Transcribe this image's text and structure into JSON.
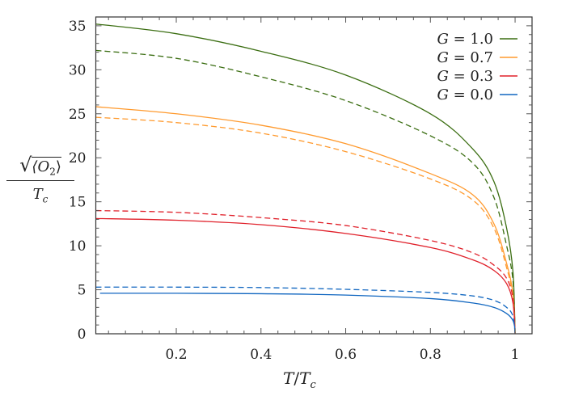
{
  "chart_data": {
    "type": "line",
    "title": "",
    "xlabel": {
      "T": "T",
      "slash": "/",
      "Tc": "T",
      "sub": "c"
    },
    "ylabel": {
      "sqrt": "√",
      "numerator": "⟨O",
      "numsub": "2",
      "close": "⟩",
      "denominator": "T",
      "densub": "c"
    },
    "xlim": [
      0.01,
      1.04
    ],
    "ylim": [
      0,
      36
    ],
    "xticks": [
      0.2,
      0.4,
      0.6,
      0.8,
      1
    ],
    "xtick_labels": [
      "0.2",
      "0.4",
      "0.6",
      "0.8",
      "1"
    ],
    "yticks": [
      0,
      5,
      10,
      15,
      20,
      25,
      30,
      35
    ],
    "ytick_labels": [
      "0",
      "5",
      "10",
      "15",
      "20",
      "25",
      "30",
      "35"
    ],
    "grid": false,
    "legend_placement": "top-right",
    "legend": [
      {
        "label": "G = 1.0",
        "var": "G",
        "value": "1.0",
        "color": "#3b6e12"
      },
      {
        "label": "G = 0.7",
        "var": "G",
        "value": "0.7",
        "color": "#ff9a2e"
      },
      {
        "label": "G = 0.3",
        "var": "G",
        "value": "0.3",
        "color": "#e0202a"
      },
      {
        "label": "G = 0.0",
        "var": "G",
        "value": "0.0",
        "color": "#1066c0"
      }
    ],
    "series": [
      {
        "group": "G = 1.0",
        "style": "solid",
        "color": "#3b6e12",
        "x": [
          0.01,
          0.2,
          0.4,
          0.6,
          0.8,
          0.9,
          0.95,
          0.98,
          0.995,
          1.0
        ],
        "y": [
          35.2,
          34.1,
          32.1,
          29.4,
          25.0,
          21.0,
          17.3,
          12.0,
          7.0,
          0
        ]
      },
      {
        "group": "G = 1.0",
        "style": "dashed",
        "color": "#3b6e12",
        "x": [
          0.01,
          0.2,
          0.4,
          0.6,
          0.8,
          0.9,
          0.95,
          0.98,
          0.995,
          1.0
        ],
        "y": [
          32.2,
          31.3,
          29.2,
          26.5,
          22.5,
          19.4,
          15.5,
          10.0,
          6.0,
          0
        ]
      },
      {
        "group": "G = 0.7",
        "style": "solid",
        "color": "#ff9a2e",
        "x": [
          0.01,
          0.2,
          0.4,
          0.6,
          0.8,
          0.9,
          0.95,
          0.98,
          0.995,
          1.0
        ],
        "y": [
          25.8,
          25.0,
          23.7,
          21.6,
          18.2,
          15.8,
          12.5,
          8.0,
          4.5,
          0
        ]
      },
      {
        "group": "G = 0.7",
        "style": "dashed",
        "color": "#ff9a2e",
        "x": [
          0.01,
          0.2,
          0.4,
          0.6,
          0.8,
          0.9,
          0.95,
          0.98,
          0.995,
          1.0
        ],
        "y": [
          24.6,
          24.0,
          22.8,
          20.7,
          17.6,
          15.2,
          12.0,
          7.5,
          4.2,
          0
        ]
      },
      {
        "group": "G = 0.3",
        "style": "solid",
        "color": "#e0202a",
        "x": [
          0.01,
          0.2,
          0.4,
          0.6,
          0.8,
          0.9,
          0.95,
          0.98,
          0.995,
          1.0
        ],
        "y": [
          13.1,
          12.9,
          12.4,
          11.4,
          9.8,
          8.4,
          7.2,
          5.7,
          3.5,
          0
        ]
      },
      {
        "group": "G = 0.3",
        "style": "dashed",
        "color": "#e0202a",
        "x": [
          0.01,
          0.2,
          0.4,
          0.6,
          0.8,
          0.9,
          0.95,
          0.98,
          0.995,
          1.0
        ],
        "y": [
          14.0,
          13.8,
          13.2,
          12.3,
          10.6,
          9.2,
          7.8,
          6.3,
          4.0,
          0
        ]
      },
      {
        "group": "G = 0.0",
        "style": "solid",
        "color": "#1066c0",
        "x": [
          0.02,
          0.2,
          0.4,
          0.6,
          0.8,
          0.9,
          0.95,
          0.98,
          0.995,
          1.0
        ],
        "y": [
          4.6,
          4.6,
          4.55,
          4.4,
          4.0,
          3.5,
          3.0,
          2.3,
          1.5,
          0.5
        ]
      },
      {
        "group": "G = 0.0",
        "style": "dashed",
        "color": "#1066c0",
        "x": [
          0.01,
          0.2,
          0.4,
          0.6,
          0.8,
          0.9,
          0.95,
          0.98,
          0.995,
          1.0
        ],
        "y": [
          5.3,
          5.3,
          5.25,
          5.05,
          4.7,
          4.3,
          3.8,
          3.0,
          2.0,
          0
        ]
      }
    ]
  }
}
